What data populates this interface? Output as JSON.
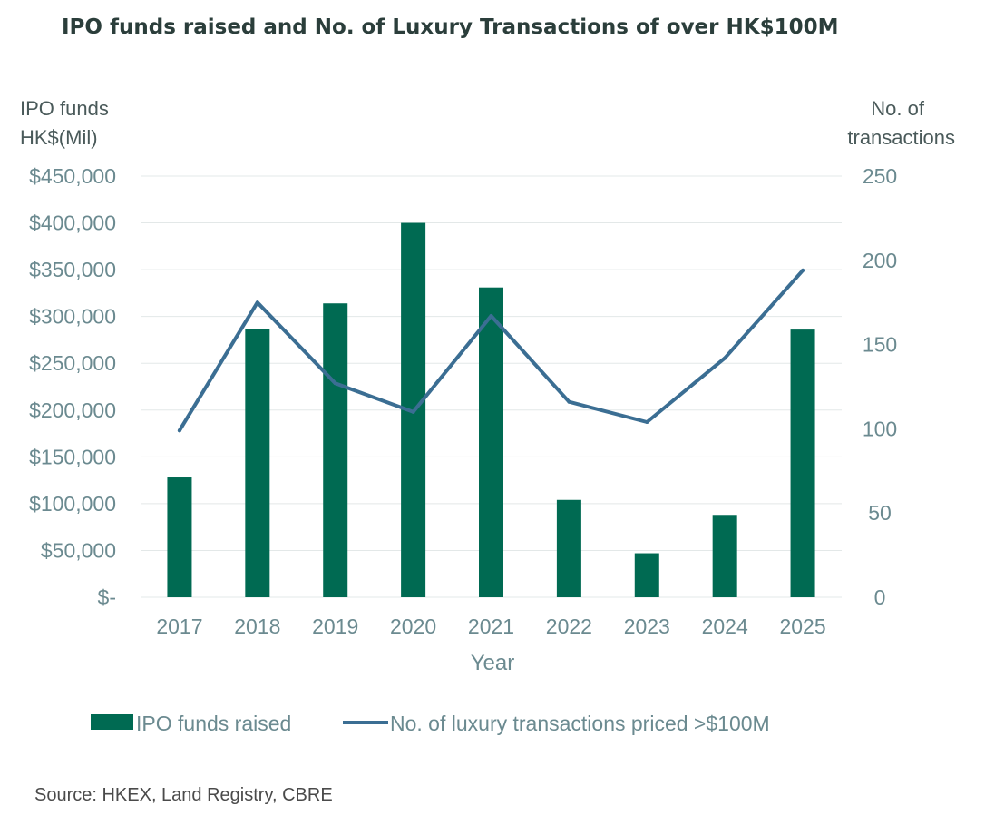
{
  "chart_data": {
    "type": "bar",
    "title": "IPO funds raised and No. of Luxury Transactions of over HK$100M",
    "ylabel_left_line1": "IPO funds",
    "ylabel_left_line2": "HK$(Mil)",
    "ylabel_right_line1": "No. of",
    "ylabel_right_line2": "transactions",
    "xlabel": "Year",
    "categories": [
      "2017",
      "2018",
      "2019",
      "2020",
      "2021",
      "2022",
      "2023",
      "2024",
      "2025"
    ],
    "series": [
      {
        "name": "IPO funds raised",
        "type": "bar",
        "axis": "left",
        "color": "#006a52",
        "values": [
          128000,
          287000,
          314000,
          400000,
          331000,
          104000,
          47000,
          88000,
          286000
        ]
      },
      {
        "name": "No. of luxury transactions priced >$100M",
        "type": "line",
        "axis": "right",
        "color": "#3b6e93",
        "values": [
          99,
          175,
          127,
          110,
          167,
          116,
          104,
          142,
          194
        ]
      }
    ],
    "ylim_left": [
      0,
      450000
    ],
    "ylim_right": [
      0,
      250
    ],
    "left_ticks": [
      0,
      50000,
      100000,
      150000,
      200000,
      250000,
      300000,
      350000,
      400000,
      450000
    ],
    "left_tick_labels": [
      "$-",
      "$50,000",
      "$100,000",
      "$150,000",
      "$200,000",
      "$250,000",
      "$300,000",
      "$350,000",
      "$400,000",
      "$450,000"
    ],
    "right_ticks": [
      0,
      50,
      100,
      150,
      200,
      250
    ],
    "right_tick_labels": [
      "0",
      "50",
      "100",
      "150",
      "200",
      "250"
    ],
    "grid": true,
    "legend_position": "bottom"
  },
  "footer": {
    "source": "Source: HKEX, Land Registry, CBRE"
  },
  "colors": {
    "title": "#2b3e3b",
    "tick": "#6b8a90",
    "grid": "#e3e8e8"
  }
}
